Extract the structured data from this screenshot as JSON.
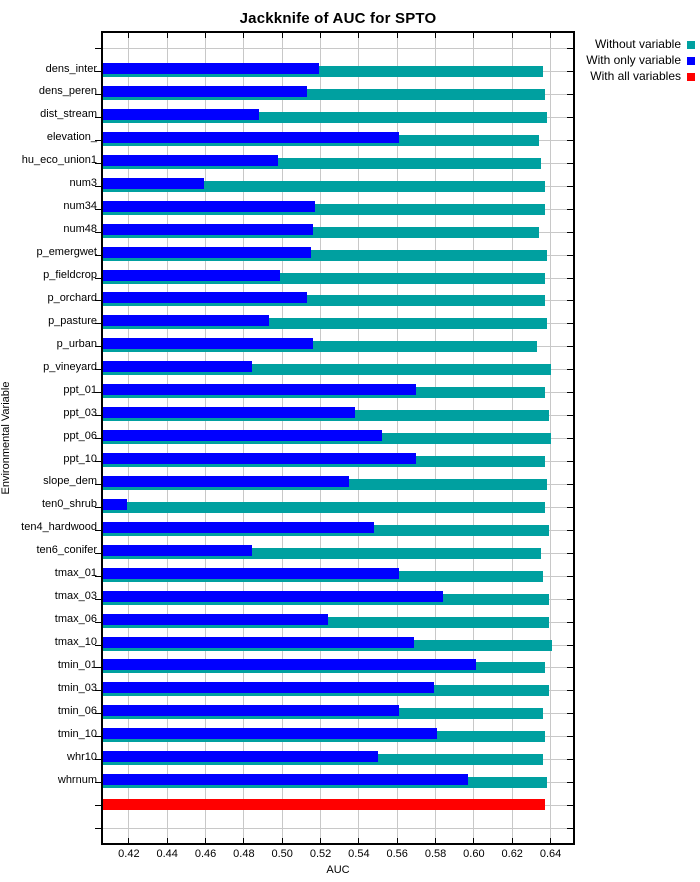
{
  "title": "Jackknife of AUC for SPTO",
  "xaxis": {
    "label": "AUC",
    "min": 0.4065,
    "max": 0.6517,
    "ticks": [
      0.42,
      0.44,
      0.46,
      0.48,
      0.5,
      0.52,
      0.54,
      0.56,
      0.58,
      0.6,
      0.62,
      0.64
    ],
    "tick_labels": [
      "0.42",
      "0.44",
      "0.46",
      "0.48",
      "0.50",
      "0.52",
      "0.54",
      "0.56",
      "0.58",
      "0.60",
      "0.62",
      "0.64"
    ]
  },
  "yaxis": {
    "label": "Environmental Variable"
  },
  "legend": [
    {
      "label": "Without variable",
      "color": "#00A0A0"
    },
    {
      "label": "With only variable",
      "color": "#0000FF"
    },
    {
      "label": "With all variables",
      "color": "#FF0000"
    }
  ],
  "colors": {
    "without_variable": "#00A0A0",
    "with_only_variable": "#0000FF",
    "with_all_variables": "#FF0000",
    "gridline": "#C8C8C8",
    "axis": "#000000"
  },
  "chart_data": {
    "type": "bar",
    "orientation": "horizontal",
    "title": "Jackknife of AUC for SPTO",
    "xlabel": "AUC",
    "ylabel": "Environmental Variable",
    "xlim": [
      0.4065,
      0.6517
    ],
    "grid": true,
    "legend_position": "top-right",
    "categories": [
      "dens_inter",
      "dens_peren",
      "dist_stream",
      "elevation_",
      "hu_eco_union1",
      "num3",
      "num34",
      "num48",
      "p_emergwet",
      "p_fieldcrop",
      "p_orchard",
      "p_pasture",
      "p_urban",
      "p_vineyard",
      "ppt_01",
      "ppt_03",
      "ppt_06",
      "ppt_10",
      "slope_dem",
      "ten0_shrub",
      "ten4_hardwood",
      "ten6_conifer",
      "tmax_01",
      "tmax_03",
      "tmax_06",
      "tmax_10",
      "tmin_01",
      "tmin_03",
      "tmin_06",
      "tmin_10",
      "whr10",
      "whrnum"
    ],
    "series": [
      {
        "name": "Without variable",
        "color": "#00A0A0",
        "values": [
          0.636,
          0.637,
          0.638,
          0.634,
          0.635,
          0.637,
          0.637,
          0.634,
          0.638,
          0.637,
          0.637,
          0.638,
          0.633,
          0.64,
          0.637,
          0.639,
          0.64,
          0.637,
          0.638,
          0.637,
          0.639,
          0.635,
          0.636,
          0.639,
          0.639,
          0.641,
          0.637,
          0.639,
          0.636,
          0.637,
          0.636,
          0.638
        ]
      },
      {
        "name": "With only variable",
        "color": "#0000FF",
        "values": [
          0.519,
          0.513,
          0.488,
          0.561,
          0.498,
          0.459,
          0.517,
          0.516,
          0.515,
          0.499,
          0.513,
          0.493,
          0.516,
          0.484,
          0.57,
          0.538,
          0.552,
          0.57,
          0.535,
          0.419,
          0.548,
          0.484,
          0.561,
          0.584,
          0.524,
          0.569,
          0.601,
          0.579,
          0.561,
          0.581,
          0.55,
          0.597
        ]
      }
    ],
    "all_variables_bar": {
      "name": "With all variables",
      "color": "#FF0000",
      "value": 0.637
    }
  }
}
